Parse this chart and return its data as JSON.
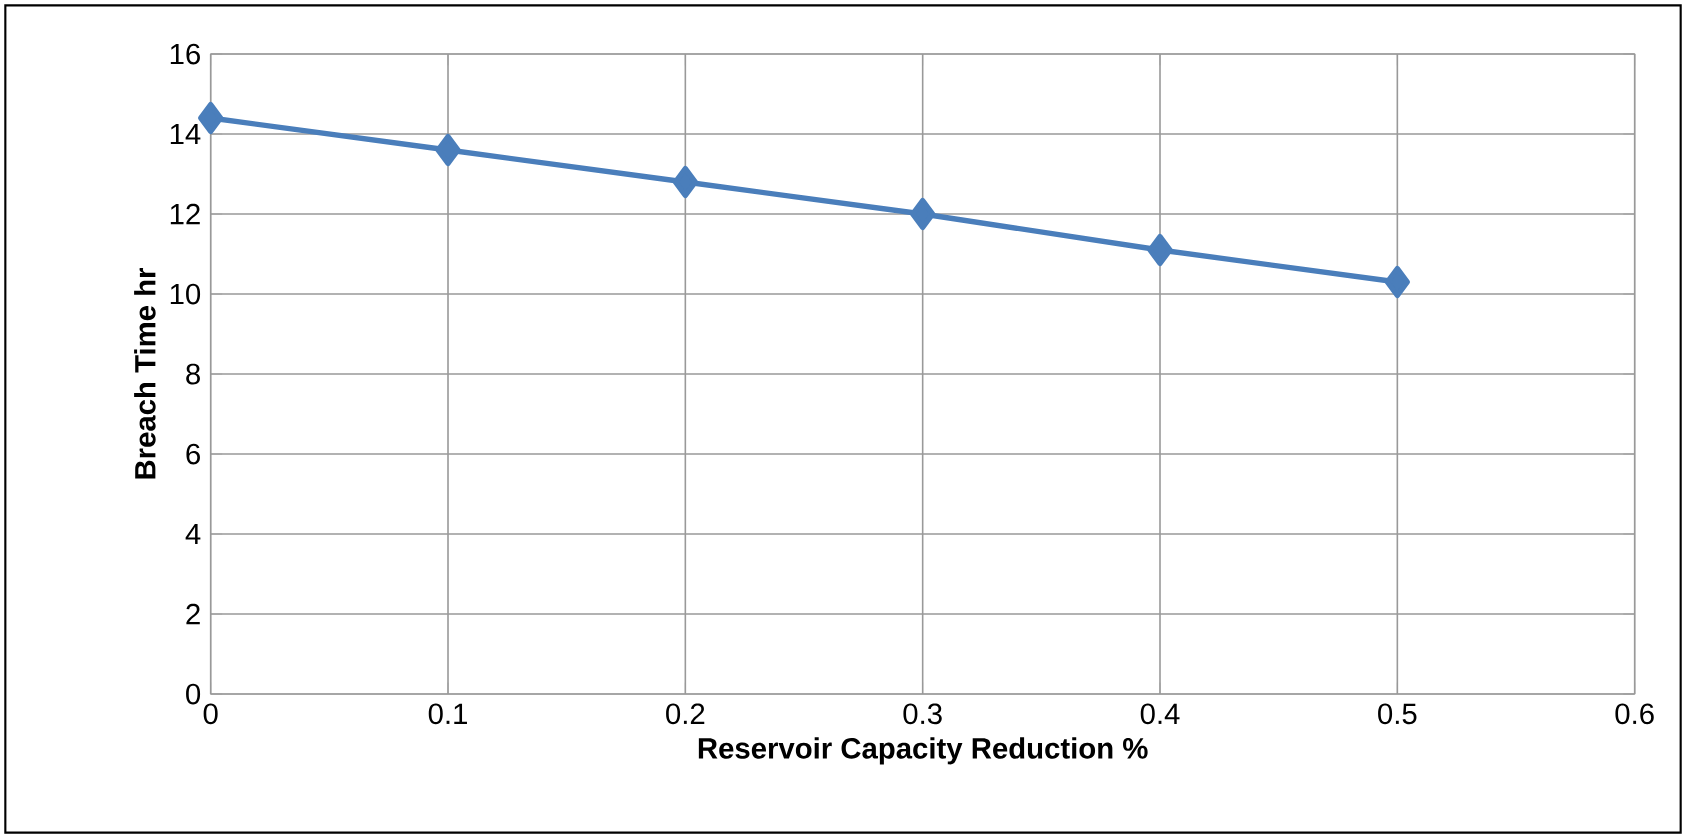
{
  "chart_data": {
    "type": "line",
    "xlabel": "Reservoir Capacity Reduction %",
    "ylabel": "Breach Time hr",
    "x": [
      0,
      0.1,
      0.2,
      0.3,
      0.4,
      0.5
    ],
    "series": [
      {
        "color": "#4a7ebb",
        "values": [
          14.4,
          13.6,
          12.8,
          12.0,
          11.1,
          10.3
        ]
      }
    ],
    "xlim": [
      0,
      0.6
    ],
    "ylim": [
      0,
      16
    ],
    "xticks": [
      0,
      0.1,
      0.2,
      0.3,
      0.4,
      0.5,
      0.6
    ],
    "yticks": [
      0,
      2,
      4,
      6,
      8,
      10,
      12,
      14,
      16
    ],
    "grid": true,
    "marker": "diamond",
    "line_style": "solid"
  }
}
